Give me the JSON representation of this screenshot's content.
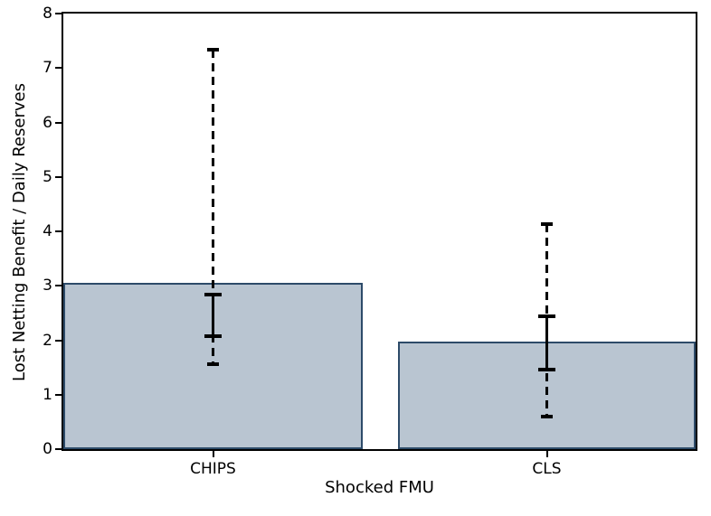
{
  "chart_data": {
    "type": "bar",
    "title": "",
    "xlabel": "Shocked FMU",
    "ylabel": "Lost Netting Benefit / Daily Reserves",
    "categories": [
      "CHIPS",
      "CLS"
    ],
    "values": [
      3.05,
      1.98
    ],
    "error_bars": {
      "inner_interval_solid": [
        [
          2.08,
          2.83
        ],
        [
          1.46,
          2.44
        ]
      ],
      "outer_interval_dashed": [
        [
          1.56,
          7.34
        ],
        [
          0.59,
          4.13
        ]
      ]
    },
    "ylim": [
      0,
      8
    ],
    "yticks": [
      "0",
      "1",
      "2",
      "3",
      "4",
      "5",
      "6",
      "7",
      "8"
    ],
    "grid": false,
    "legend": "none",
    "colors": {
      "bar_fill": "#b9c5d1",
      "bar_edge": "#2d4b69",
      "error_bar": "#000000",
      "axis": "#000000",
      "background": "#ffffff"
    }
  }
}
